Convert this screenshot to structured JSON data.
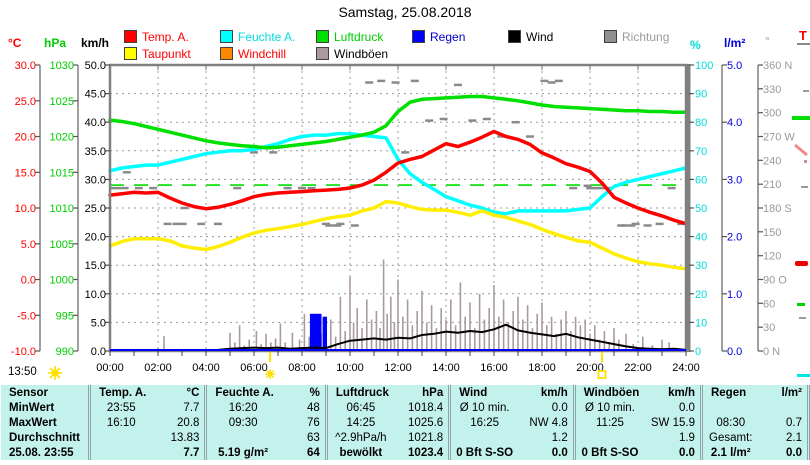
{
  "title": "Samstag, 25.08.2018",
  "legend": {
    "row1": [
      {
        "label": "Temp. A.",
        "box": "#ff0000",
        "text": "#ff0000"
      },
      {
        "label": "Feuchte A.",
        "box": "#00ffff",
        "text": "#00dcdc"
      },
      {
        "label": "Luftdruck",
        "box": "#00e000",
        "text": "#00cc00"
      },
      {
        "label": "Regen",
        "box": "#0000ff",
        "text": "#0000cc"
      },
      {
        "label": "Wind",
        "box": "#000000",
        "text": "#000000"
      },
      {
        "label": "Richtung",
        "box": "#909090",
        "text": "#9a9a9a"
      }
    ],
    "row2": [
      {
        "label": "Taupunkt",
        "box": "#ffff00",
        "text": "#ff0000"
      },
      {
        "label": "Windchill",
        "box": "#ff8800",
        "text": "#ff0000"
      },
      {
        "label": "Windböen",
        "box": "#a89aa0",
        "text": "#000000"
      }
    ]
  },
  "chart_data": {
    "type": "line",
    "x_unit": "hours",
    "x_step": 0.5,
    "x_labels": [
      "00:00",
      "02:00",
      "04:00",
      "06:00",
      "08:00",
      "10:00",
      "12:00",
      "14:00",
      "16:00",
      "18:00",
      "20:00",
      "22:00",
      "24:00"
    ],
    "axes": {
      "temp": {
        "unit": "°C",
        "color": "#ff0000",
        "min": -10,
        "max": 30,
        "labels": [
          "30.0",
          "25.0",
          "20.0",
          "15.0",
          "10.0",
          "5.0",
          "0.0",
          "-5.0",
          "-10.0"
        ]
      },
      "hpa": {
        "unit": "hPa",
        "color": "#00cc00",
        "min": 990,
        "max": 1030,
        "labels": [
          "1030",
          "1025",
          "1020",
          "1015",
          "1010",
          "1005",
          "1000",
          "995",
          "990"
        ]
      },
      "kmh": {
        "unit": "km/h",
        "color": "#000000",
        "min": 0,
        "max": 50,
        "labels": [
          "50.0",
          "45.0",
          "40.0",
          "35.0",
          "30.0",
          "25.0",
          "20.0",
          "15.0",
          "10.0",
          "5.0",
          "0.0"
        ]
      },
      "pct": {
        "unit": "%",
        "color": "#00dcdc",
        "min": 0,
        "max": 100,
        "labels": [
          "100",
          "90",
          "80",
          "70",
          "60",
          "50",
          "40",
          "30",
          "20",
          "10",
          "0"
        ]
      },
      "rain": {
        "unit": "l/m²",
        "color": "#0000dd",
        "min": 0,
        "max": 5,
        "labels": [
          "5.0",
          "4.0",
          "3.0",
          "2.0",
          "1.0",
          "0.0"
        ]
      },
      "deg": {
        "unit": "°",
        "color": "#9a9a9a",
        "min": 0,
        "max": 360,
        "labels": [
          "360 N",
          "330",
          "300",
          "270 W",
          "240",
          "210",
          "180 S",
          "150",
          "120",
          "90 O",
          "60",
          "30",
          "0  N"
        ]
      }
    },
    "reference_line": {
      "axis": "hpa",
      "value": 1013.2,
      "color": "#00dd00"
    },
    "series": [
      {
        "name": "Feuchte A.",
        "axis": "pct",
        "color": "#00ffff",
        "width": 3.5,
        "values": [
          63,
          64,
          64.5,
          65,
          65,
          66,
          67,
          68,
          69,
          69.5,
          70,
          70,
          70.5,
          71.5,
          72.5,
          74,
          75,
          75.5,
          75.5,
          76,
          76,
          75.5,
          75,
          74.5,
          67,
          62,
          59,
          56.5,
          54,
          52.5,
          51,
          50,
          48.5,
          48,
          49,
          49,
          49,
          49,
          49,
          49.5,
          50,
          54,
          57.5,
          59,
          60,
          61,
          62,
          63,
          64
        ]
      },
      {
        "name": "Taupunkt",
        "axis": "temp",
        "color": "#ffee00",
        "width": 3.5,
        "values": [
          4.7,
          5.3,
          5.7,
          5.7,
          5.7,
          5.4,
          4.7,
          4.4,
          4.2,
          4.6,
          5.2,
          5.9,
          6.5,
          6.9,
          7.1,
          7.4,
          7.7,
          8.1,
          8.5,
          8.8,
          9.0,
          9.6,
          10.0,
          10.9,
          10.7,
          10.2,
          9.8,
          9.7,
          9.7,
          9.4,
          9.0,
          9.6,
          9.0,
          8.7,
          8.2,
          7.7,
          7.0,
          6.4,
          5.9,
          5.4,
          5.2,
          4.4,
          3.6,
          3.0,
          2.5,
          2.2,
          2.0,
          1.7,
          1.5
        ]
      },
      {
        "name": "Luftdruck",
        "axis": "hpa",
        "color": "#00e000",
        "width": 3.5,
        "values": [
          1022.3,
          1022.1,
          1021.8,
          1021.4,
          1021.0,
          1020.6,
          1020.2,
          1019.8,
          1019.4,
          1019.1,
          1018.9,
          1018.7,
          1018.6,
          1018.4,
          1018.5,
          1018.7,
          1018.9,
          1019.1,
          1019.3,
          1019.6,
          1019.9,
          1020.2,
          1020.6,
          1021.5,
          1023.5,
          1024.8,
          1025.2,
          1025.3,
          1025.4,
          1025.5,
          1025.6,
          1025.6,
          1025.4,
          1025.2,
          1025.0,
          1024.7,
          1024.4,
          1024.2,
          1024.1,
          1024.0,
          1023.9,
          1023.8,
          1023.7,
          1023.6,
          1023.6,
          1023.5,
          1023.5,
          1023.4,
          1023.4
        ]
      },
      {
        "name": "Temp. A.",
        "axis": "temp",
        "color": "#ff0000",
        "width": 3.5,
        "values": [
          11.8,
          12.0,
          12.2,
          12.1,
          12.2,
          11.4,
          10.7,
          10.2,
          9.9,
          10.1,
          10.5,
          11.0,
          11.6,
          11.9,
          12.1,
          12.2,
          12.3,
          12.4,
          12.5,
          12.6,
          12.8,
          13.2,
          13.9,
          15.0,
          16.3,
          16.8,
          17.2,
          18.1,
          19.0,
          18.6,
          19.2,
          19.9,
          20.7,
          20.0,
          19.6,
          18.9,
          17.7,
          17.0,
          16.2,
          15.7,
          15.1,
          13.5,
          11.5,
          10.7,
          10.0,
          9.4,
          8.9,
          8.3,
          7.8
        ]
      },
      {
        "name": "Wind",
        "axis": "kmh",
        "color": "#000000",
        "width": 2,
        "values": [
          0,
          0,
          0,
          0,
          0.2,
          0.1,
          0,
          0,
          0,
          0.2,
          0.4,
          0.5,
          0.6,
          0.5,
          0.6,
          0.4,
          0.5,
          0.6,
          0.5,
          1.2,
          1.8,
          2.0,
          2.2,
          2.0,
          2.3,
          2.2,
          2.8,
          3.0,
          3.4,
          3.2,
          3.5,
          3.3,
          3.8,
          4.6,
          3.6,
          3.2,
          2.9,
          2.6,
          3.0,
          2.4,
          2.0,
          1.6,
          1.2,
          0.8,
          0.5,
          0.4,
          0.3,
          0.4,
          0.2
        ]
      }
    ],
    "windboeen": [
      [
        2.25,
        2.6
      ],
      [
        5.0,
        3.2
      ],
      [
        5.2,
        1.5
      ],
      [
        5.4,
        4.5
      ],
      [
        5.6,
        1.0
      ],
      [
        5.8,
        2.0
      ],
      [
        6.1,
        3.5
      ],
      [
        6.3,
        1.2
      ],
      [
        6.5,
        3.0
      ],
      [
        6.7,
        1.5
      ],
      [
        6.9,
        2.2
      ],
      [
        7.1,
        4.8
      ],
      [
        7.3,
        1.5
      ],
      [
        7.6,
        3.2
      ],
      [
        7.9,
        2.0
      ],
      [
        8.1,
        6.5
      ],
      [
        8.3,
        2.5
      ],
      [
        8.6,
        1.5
      ],
      [
        8.8,
        3.0
      ],
      [
        9.0,
        2.0
      ],
      [
        9.2,
        5.5
      ],
      [
        9.4,
        2.5
      ],
      [
        9.6,
        9.5
      ],
      [
        9.8,
        3.5
      ],
      [
        10.0,
        13.0
      ],
      [
        10.15,
        5.0
      ],
      [
        10.3,
        7.5
      ],
      [
        10.5,
        4.0
      ],
      [
        10.7,
        9.0
      ],
      [
        10.9,
        5.5
      ],
      [
        11.1,
        7.0
      ],
      [
        11.25,
        4.0
      ],
      [
        11.4,
        16.0
      ],
      [
        11.55,
        6.5
      ],
      [
        11.7,
        9.5
      ],
      [
        11.85,
        5.0
      ],
      [
        12.0,
        12.5
      ],
      [
        12.2,
        6.0
      ],
      [
        12.4,
        9.0
      ],
      [
        12.6,
        4.5
      ],
      [
        12.8,
        7.0
      ],
      [
        13.0,
        10.5
      ],
      [
        13.2,
        5.0
      ],
      [
        13.4,
        8.0
      ],
      [
        13.6,
        4.0
      ],
      [
        13.8,
        7.5
      ],
      [
        14.0,
        5.5
      ],
      [
        14.2,
        9.0
      ],
      [
        14.4,
        4.5
      ],
      [
        14.6,
        12.0
      ],
      [
        14.8,
        6.0
      ],
      [
        15.0,
        8.5
      ],
      [
        15.2,
        4.0
      ],
      [
        15.4,
        10.0
      ],
      [
        15.6,
        5.5
      ],
      [
        15.8,
        7.5
      ],
      [
        16.0,
        11.5
      ],
      [
        16.2,
        6.0
      ],
      [
        16.4,
        9.0
      ],
      [
        16.6,
        5.0
      ],
      [
        16.8,
        7.0
      ],
      [
        17.0,
        9.5
      ],
      [
        17.2,
        5.5
      ],
      [
        17.4,
        8.0
      ],
      [
        17.6,
        4.0
      ],
      [
        17.8,
        6.5
      ],
      [
        18.0,
        8.5
      ],
      [
        18.2,
        4.5
      ],
      [
        18.4,
        6.0
      ],
      [
        18.6,
        3.0
      ],
      [
        18.8,
        5.5
      ],
      [
        19.0,
        7.0
      ],
      [
        19.2,
        3.5
      ],
      [
        19.4,
        6.0
      ],
      [
        19.6,
        4.5
      ],
      [
        19.8,
        5.5
      ],
      [
        20.0,
        3.0
      ],
      [
        20.2,
        4.5
      ],
      [
        20.4,
        2.0
      ],
      [
        20.6,
        3.5
      ],
      [
        20.8,
        1.5
      ],
      [
        21.0,
        4.0
      ],
      [
        21.2,
        2.0
      ],
      [
        21.5,
        3.0
      ],
      [
        21.8,
        1.2
      ],
      [
        22.2,
        2.5
      ],
      [
        22.6,
        1.0
      ],
      [
        23.0,
        2.0
      ],
      [
        23.3,
        1.5
      ]
    ],
    "regen": [
      [
        8.42,
        0.65
      ],
      [
        8.58,
        0.65
      ],
      [
        8.72,
        0.65
      ],
      [
        8.95,
        0.6
      ]
    ],
    "richtung": [
      [
        0.4,
        205,
        18
      ],
      [
        0.7,
        225
      ],
      [
        1.2,
        205
      ],
      [
        1.8,
        205
      ],
      [
        2.4,
        160
      ],
      [
        2.9,
        160,
        14
      ],
      [
        3.1,
        180
      ],
      [
        3.8,
        160
      ],
      [
        4.5,
        160
      ],
      [
        5.3,
        205
      ],
      [
        6.0,
        250
      ],
      [
        6.8,
        250
      ],
      [
        7.4,
        205
      ],
      [
        8.0,
        205
      ],
      [
        8.4,
        205
      ],
      [
        9.0,
        160
      ],
      [
        9.3,
        158,
        16
      ],
      [
        9.6,
        160
      ],
      [
        10.2,
        158
      ],
      [
        10.8,
        338
      ],
      [
        11.3,
        340
      ],
      [
        11.9,
        338
      ],
      [
        12.3,
        250
      ],
      [
        12.7,
        340
      ],
      [
        13.3,
        290
      ],
      [
        13.9,
        292
      ],
      [
        14.5,
        335
      ],
      [
        15.1,
        290
      ],
      [
        15.7,
        292
      ],
      [
        16.3,
        270
      ],
      [
        16.9,
        288
      ],
      [
        17.5,
        270
      ],
      [
        18.1,
        340
      ],
      [
        18.4,
        338
      ],
      [
        18.7,
        340
      ],
      [
        19.3,
        205
      ],
      [
        19.9,
        208
      ],
      [
        20.3,
        205,
        22
      ],
      [
        20.8,
        205
      ],
      [
        21.3,
        158
      ],
      [
        21.6,
        158,
        14
      ],
      [
        21.9,
        160
      ],
      [
        22.4,
        158
      ],
      [
        22.9,
        160
      ],
      [
        23.4,
        205
      ],
      [
        23.8,
        160
      ]
    ],
    "sun": {
      "sunrise_hour": 6.67,
      "sunset_hour": 20.5
    }
  },
  "footer": {
    "sunshine_duration": "13:50"
  },
  "right_strip": {
    "label": "T"
  },
  "table": {
    "groups": [
      {
        "name": "Sensor",
        "unit": ""
      },
      {
        "name": "Temp. A.",
        "unit": "°C"
      },
      {
        "name": "Feuchte A.",
        "unit": "%"
      },
      {
        "name": "Luftdruck",
        "unit": "hPa"
      },
      {
        "name": "Wind",
        "unit": "km/h"
      },
      {
        "name": "Windböen",
        "unit": "km/h"
      },
      {
        "name": "Regen",
        "unit": "l/m²"
      }
    ],
    "rows": [
      {
        "label": "MinWert",
        "bold": false,
        "cells": [
          [
            "23:55",
            "7.7"
          ],
          [
            "16:20",
            "48"
          ],
          [
            "06:45",
            "1018.4"
          ],
          [
            "Ø 10 min.",
            "0.0"
          ],
          [
            "Ø 10 min.",
            "0.0"
          ],
          [
            "",
            ""
          ]
        ]
      },
      {
        "label": "MaxWert",
        "bold": false,
        "cells": [
          [
            "16:10",
            "20.8"
          ],
          [
            "09:30",
            "76"
          ],
          [
            "14:25",
            "1025.6"
          ],
          [
            "16:25",
            "NW 4.8"
          ],
          [
            "11:25",
            "SW 15.9"
          ],
          [
            "08:30",
            "0.7"
          ]
        ]
      },
      {
        "label": "Durchschnitt",
        "bold": false,
        "cells": [
          [
            "",
            "13.83"
          ],
          [
            "",
            "63"
          ],
          [
            "^2.9hPa/h",
            "1021.8"
          ],
          [
            "",
            "1.2"
          ],
          [
            "",
            "1.9"
          ],
          [
            "Gesamt:",
            "2.1"
          ]
        ]
      },
      {
        "label": "25.08. 23:55",
        "bold": true,
        "cells": [
          [
            "",
            "7.7"
          ],
          [
            "5.19 g/m²",
            "64"
          ],
          [
            "bewölkt",
            "1023.4"
          ],
          [
            "0 Bft S-SO",
            "0.0"
          ],
          [
            "0 Bft S-SO",
            "0.0"
          ],
          [
            "2.1 l/m²",
            "0.0"
          ]
        ]
      }
    ]
  }
}
